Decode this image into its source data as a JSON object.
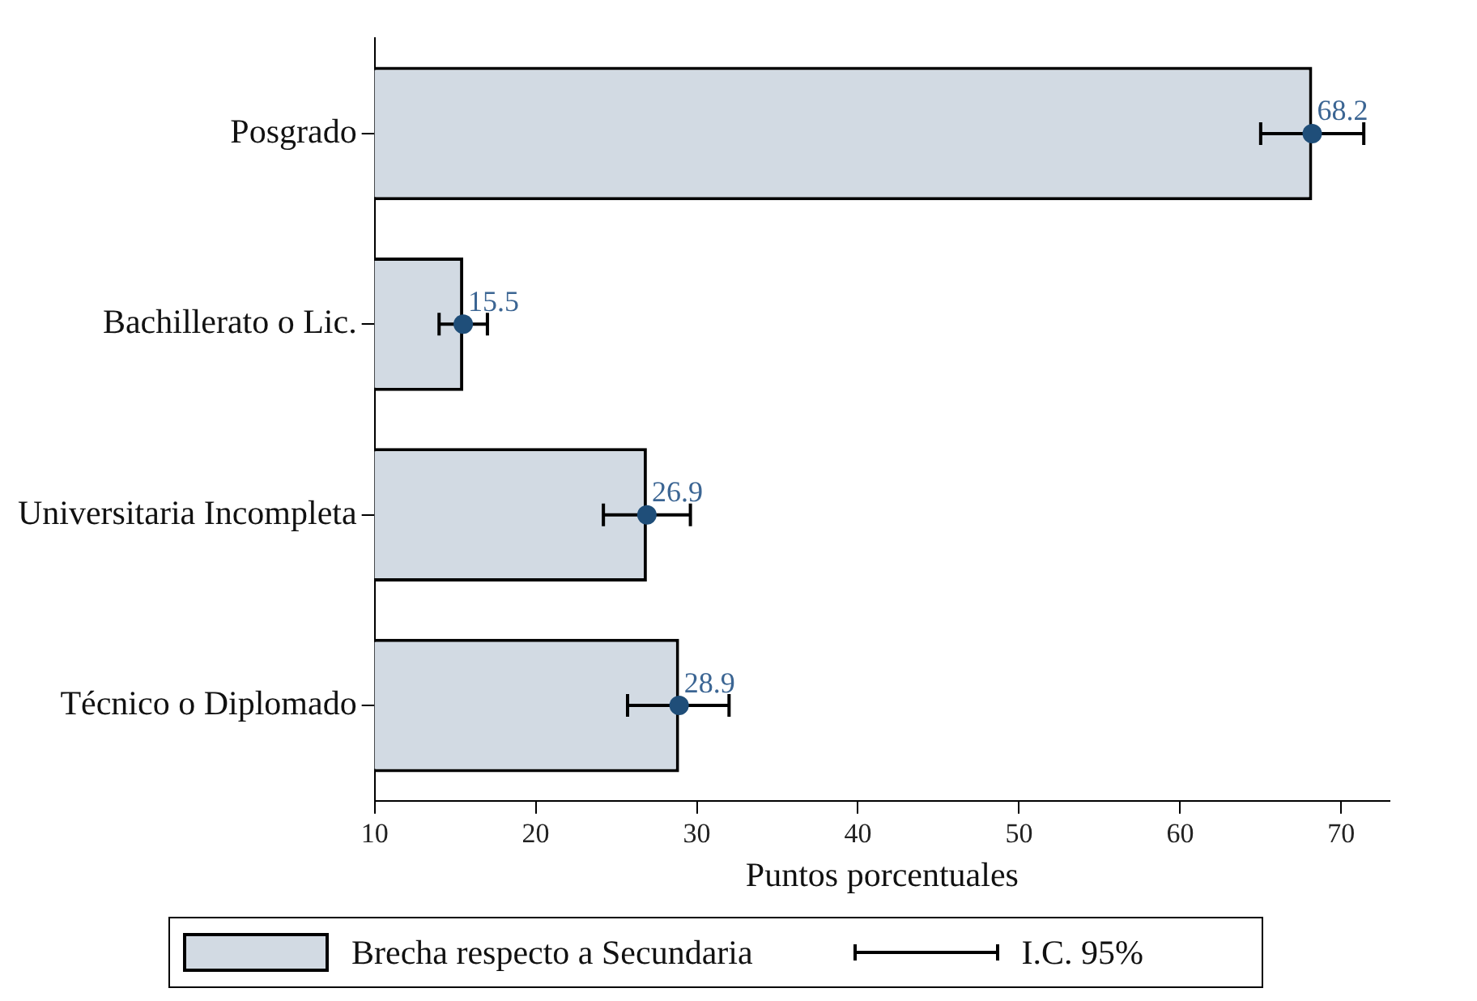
{
  "chart_data": {
    "type": "bar",
    "orientation": "horizontal",
    "xlabel": "Puntos porcentuales",
    "categories": [
      "Posgrado",
      "Bachillerato o Lic.",
      "Universitaria Incompleta",
      "Técnico o Diplomado"
    ],
    "series": [
      {
        "name": "Brecha respecto a Secundaria",
        "color": "#d2dae3",
        "values": [
          68.2,
          15.5,
          26.9,
          28.9
        ]
      },
      {
        "type": "scatter",
        "color": "#1f4e79",
        "x": [
          "Posgrado",
          "Bachillerato o Lic.",
          "Universitaria Incompleta",
          "Técnico o Diplomado"
        ],
        "values": [
          68.2,
          15.5,
          26.9,
          28.9
        ],
        "value_labels": [
          "68.2",
          "15.5",
          "26.9",
          "28.9"
        ],
        "errors": [
          [
            65.0,
            71.4
          ],
          [
            14.0,
            17.0
          ],
          [
            24.2,
            29.6
          ],
          [
            25.7,
            32.0
          ]
        ]
      }
    ],
    "xlim": [
      10,
      73
    ],
    "xticks": [
      10,
      20,
      30,
      40,
      50,
      60,
      70
    ],
    "marker": "circle",
    "grid": false,
    "legend": "bottom",
    "annotations": [
      "I.C. 95%"
    ]
  }
}
